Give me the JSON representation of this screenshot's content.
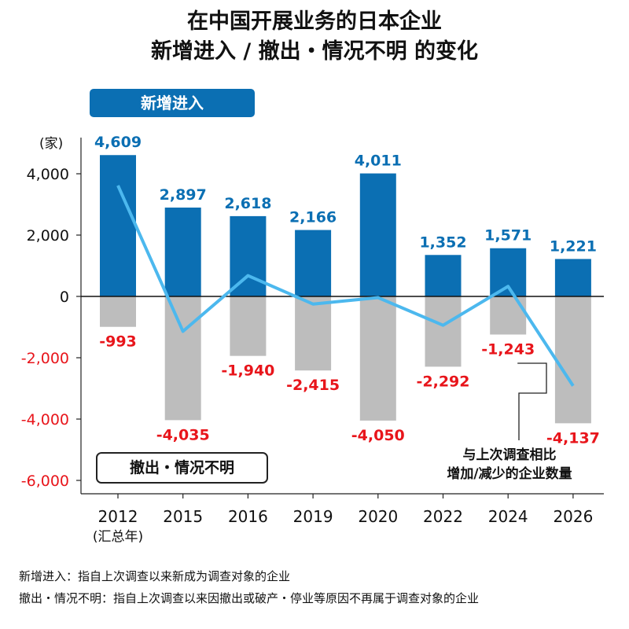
{
  "title": {
    "line1": "在中国开展业务的日本企业",
    "line2": "新增进入  /  撤出・情况不明 的变化"
  },
  "legend": {
    "new_label": "新增进入",
    "exit_label": "撤出・情况不明",
    "line_label_line1": "与上次调查相比",
    "line_label_line2": "增加/减少的企业数量"
  },
  "unit": "(家)",
  "footnotes": [
    "新增进入：指自上次调查以来新成为调查对象的企业",
    "撤出・情况不明：指自上次调查以来因撤出或破产・停业等原因不再属于调查对象的企业"
  ],
  "colors": {
    "new_bar": "#0b6fb3",
    "exit_bar": "#bdbdbd",
    "line": "#4cb8ee",
    "positive_label": "#0b6fb3",
    "negative_label": "#e8151b"
  },
  "chart_data": {
    "type": "bar",
    "categories": [
      "2012",
      "2015",
      "2016",
      "2019",
      "2020",
      "2022",
      "2024",
      "2026"
    ],
    "category_sublabels": [
      "(汇总年)",
      "",
      "",
      "",
      "",
      "",
      "",
      ""
    ],
    "series": [
      {
        "name": "新增进入",
        "values": [
          4609,
          2897,
          2618,
          2166,
          4011,
          1352,
          1571,
          1221
        ]
      },
      {
        "name": "撤出・情况不明",
        "values": [
          -993,
          -4035,
          -1940,
          -2415,
          -4050,
          -2292,
          -1243,
          -4137
        ]
      },
      {
        "name": "与上次调查相比增加/减少的企业数量",
        "type": "line",
        "values": [
          3616,
          -1138,
          678,
          -249,
          -39,
          -940,
          328,
          -2916
        ]
      }
    ],
    "data_labels_new": [
      "4,609",
      "2,897",
      "2,618",
      "2,166",
      "4,011",
      "1,352",
      "1,571",
      "1,221"
    ],
    "data_labels_exit": [
      "-993",
      "-4,035",
      "-1,940",
      "-2,415",
      "-4,050",
      "-2,292",
      "-1,243",
      "-4,137"
    ],
    "y_ticks": [
      4000,
      2000,
      0,
      -2000,
      -4000,
      -6000
    ],
    "y_tick_labels": [
      "4,000",
      "2,000",
      "0",
      "-2,000",
      "-4,000",
      "-6,000"
    ],
    "ylim": [
      -6000,
      5000
    ],
    "grid": false,
    "legend_position": "top-left"
  }
}
